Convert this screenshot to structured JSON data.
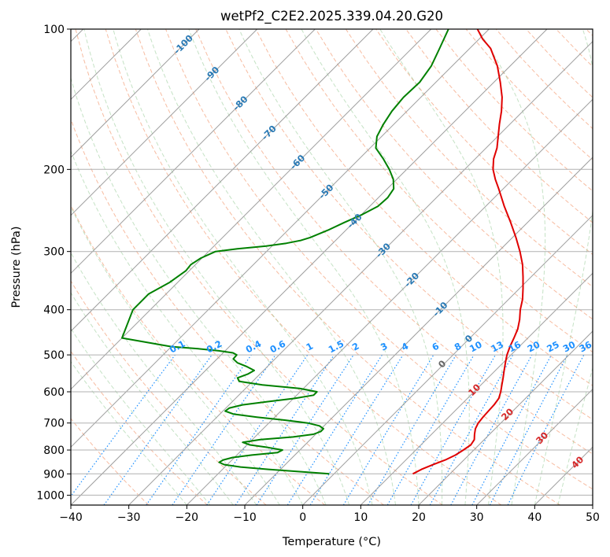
{
  "chart_data": {
    "type": "skew-t log-p",
    "title": "wetPf2_C2E2.2025.339.04.20.G20",
    "xlabel": "Temperature (°C)",
    "ylabel": "Pressure (hPa)",
    "xlim": [
      -40,
      50
    ],
    "ylim": [
      1050,
      100
    ],
    "x_ticks": [
      -40,
      -30,
      -20,
      -10,
      0,
      10,
      20,
      30,
      40,
      50
    ],
    "y_ticks": [
      100,
      200,
      300,
      400,
      500,
      600,
      700,
      800,
      900,
      1000
    ],
    "isotherm_labels": [
      -100,
      -90,
      -80,
      -70,
      -60,
      -50,
      -40,
      -30,
      -20,
      -10,
      0
    ],
    "mixing_ratio_labels": [
      "0.1",
      "0.2",
      "0.4",
      "0.6",
      "1",
      "1.5",
      "2",
      "3",
      "4",
      "6",
      "8",
      "10",
      "13",
      "16",
      "20",
      "25",
      "30",
      "36"
    ],
    "mixing_ratio_values": [
      0.1,
      0.2,
      0.4,
      0.6,
      1,
      1.5,
      2,
      3,
      4,
      6,
      8,
      10,
      13,
      16,
      20,
      25,
      30,
      36
    ],
    "dry_adiabat_labels": [
      10,
      20,
      30,
      40
    ],
    "series": [
      {
        "name": "temperature",
        "color": "#e00000",
        "points": [
          [
            900,
            13.6
          ],
          [
            880,
            14.3
          ],
          [
            860,
            15.5
          ],
          [
            840,
            16.8
          ],
          [
            820,
            17.7
          ],
          [
            800,
            18.2
          ],
          [
            780,
            18.6
          ],
          [
            760,
            18.3
          ],
          [
            740,
            17.4
          ],
          [
            720,
            16.6
          ],
          [
            700,
            16.1
          ],
          [
            680,
            15.9
          ],
          [
            660,
            15.8
          ],
          [
            640,
            15.7
          ],
          [
            620,
            15.4
          ],
          [
            600,
            14.6
          ],
          [
            580,
            13.6
          ],
          [
            560,
            12.6
          ],
          [
            540,
            11.5
          ],
          [
            520,
            10.4
          ],
          [
            500,
            9.3
          ],
          [
            480,
            8.4
          ],
          [
            460,
            7.6
          ],
          [
            440,
            6.7
          ],
          [
            420,
            5.4
          ],
          [
            400,
            3.8
          ],
          [
            380,
            2.4
          ],
          [
            360,
            0.6
          ],
          [
            340,
            -1.4
          ],
          [
            320,
            -3.6
          ],
          [
            300,
            -6.3
          ],
          [
            280,
            -9.4
          ],
          [
            260,
            -12.9
          ],
          [
            240,
            -16.8
          ],
          [
            220,
            -20.8
          ],
          [
            210,
            -23.0
          ],
          [
            200,
            -25.1
          ],
          [
            190,
            -26.8
          ],
          [
            180,
            -28.1
          ],
          [
            170,
            -29.9
          ],
          [
            160,
            -31.8
          ],
          [
            150,
            -33.7
          ],
          [
            140,
            -36.0
          ],
          [
            130,
            -38.9
          ],
          [
            120,
            -42.2
          ],
          [
            110,
            -46.4
          ],
          [
            105,
            -49.4
          ],
          [
            100,
            -52.0
          ]
        ]
      },
      {
        "name": "dewpoint",
        "color": "#008000",
        "points": [
          [
            900,
            -0.8
          ],
          [
            890,
            -6.3
          ],
          [
            880,
            -12.1
          ],
          [
            870,
            -17.3
          ],
          [
            860,
            -20.5
          ],
          [
            850,
            -21.8
          ],
          [
            840,
            -21.5
          ],
          [
            830,
            -20.3
          ],
          [
            820,
            -17.4
          ],
          [
            810,
            -13.4
          ],
          [
            800,
            -13.0
          ],
          [
            790,
            -15.9
          ],
          [
            780,
            -19.5
          ],
          [
            770,
            -21.2
          ],
          [
            760,
            -18.6
          ],
          [
            750,
            -13.4
          ],
          [
            740,
            -10.4
          ],
          [
            730,
            -9.6
          ],
          [
            720,
            -9.6
          ],
          [
            710,
            -10.8
          ],
          [
            700,
            -13.3
          ],
          [
            690,
            -17.8
          ],
          [
            680,
            -23.1
          ],
          [
            670,
            -27.6
          ],
          [
            660,
            -29.6
          ],
          [
            650,
            -29.4
          ],
          [
            640,
            -27.7
          ],
          [
            630,
            -24.0
          ],
          [
            620,
            -19.8
          ],
          [
            610,
            -17.1
          ],
          [
            600,
            -17.1
          ],
          [
            590,
            -20.7
          ],
          [
            580,
            -27.7
          ],
          [
            570,
            -32.3
          ],
          [
            560,
            -33.2
          ],
          [
            550,
            -32.1
          ],
          [
            540,
            -31.6
          ],
          [
            530,
            -33.5
          ],
          [
            520,
            -35.8
          ],
          [
            510,
            -37.2
          ],
          [
            500,
            -37.3
          ],
          [
            495,
            -38.3
          ],
          [
            490,
            -41.1
          ],
          [
            485,
            -45.0
          ],
          [
            480,
            -50.0
          ],
          [
            460,
            -60
          ],
          [
            400,
            -63.0
          ],
          [
            370,
            -63.0
          ],
          [
            350,
            -61.4
          ],
          [
            330,
            -60.6
          ],
          [
            320,
            -60.8
          ],
          [
            310,
            -60.2
          ],
          [
            300,
            -58.8
          ],
          [
            296,
            -55.5
          ],
          [
            292,
            -51.0
          ],
          [
            288,
            -48.0
          ],
          [
            284,
            -46.0
          ],
          [
            280,
            -44.9
          ],
          [
            270,
            -43.1
          ],
          [
            260,
            -41.6
          ],
          [
            250,
            -39.9
          ],
          [
            240,
            -38.6
          ],
          [
            230,
            -38.4
          ],
          [
            220,
            -38.9
          ],
          [
            210,
            -40.6
          ],
          [
            200,
            -43.0
          ],
          [
            190,
            -45.8
          ],
          [
            180,
            -49.0
          ],
          [
            170,
            -50.8
          ],
          [
            160,
            -51.8
          ],
          [
            150,
            -52.6
          ],
          [
            140,
            -53.0
          ],
          [
            130,
            -52.8
          ],
          [
            120,
            -53.6
          ],
          [
            110,
            -55.2
          ],
          [
            100,
            -57.0
          ]
        ]
      }
    ]
  }
}
